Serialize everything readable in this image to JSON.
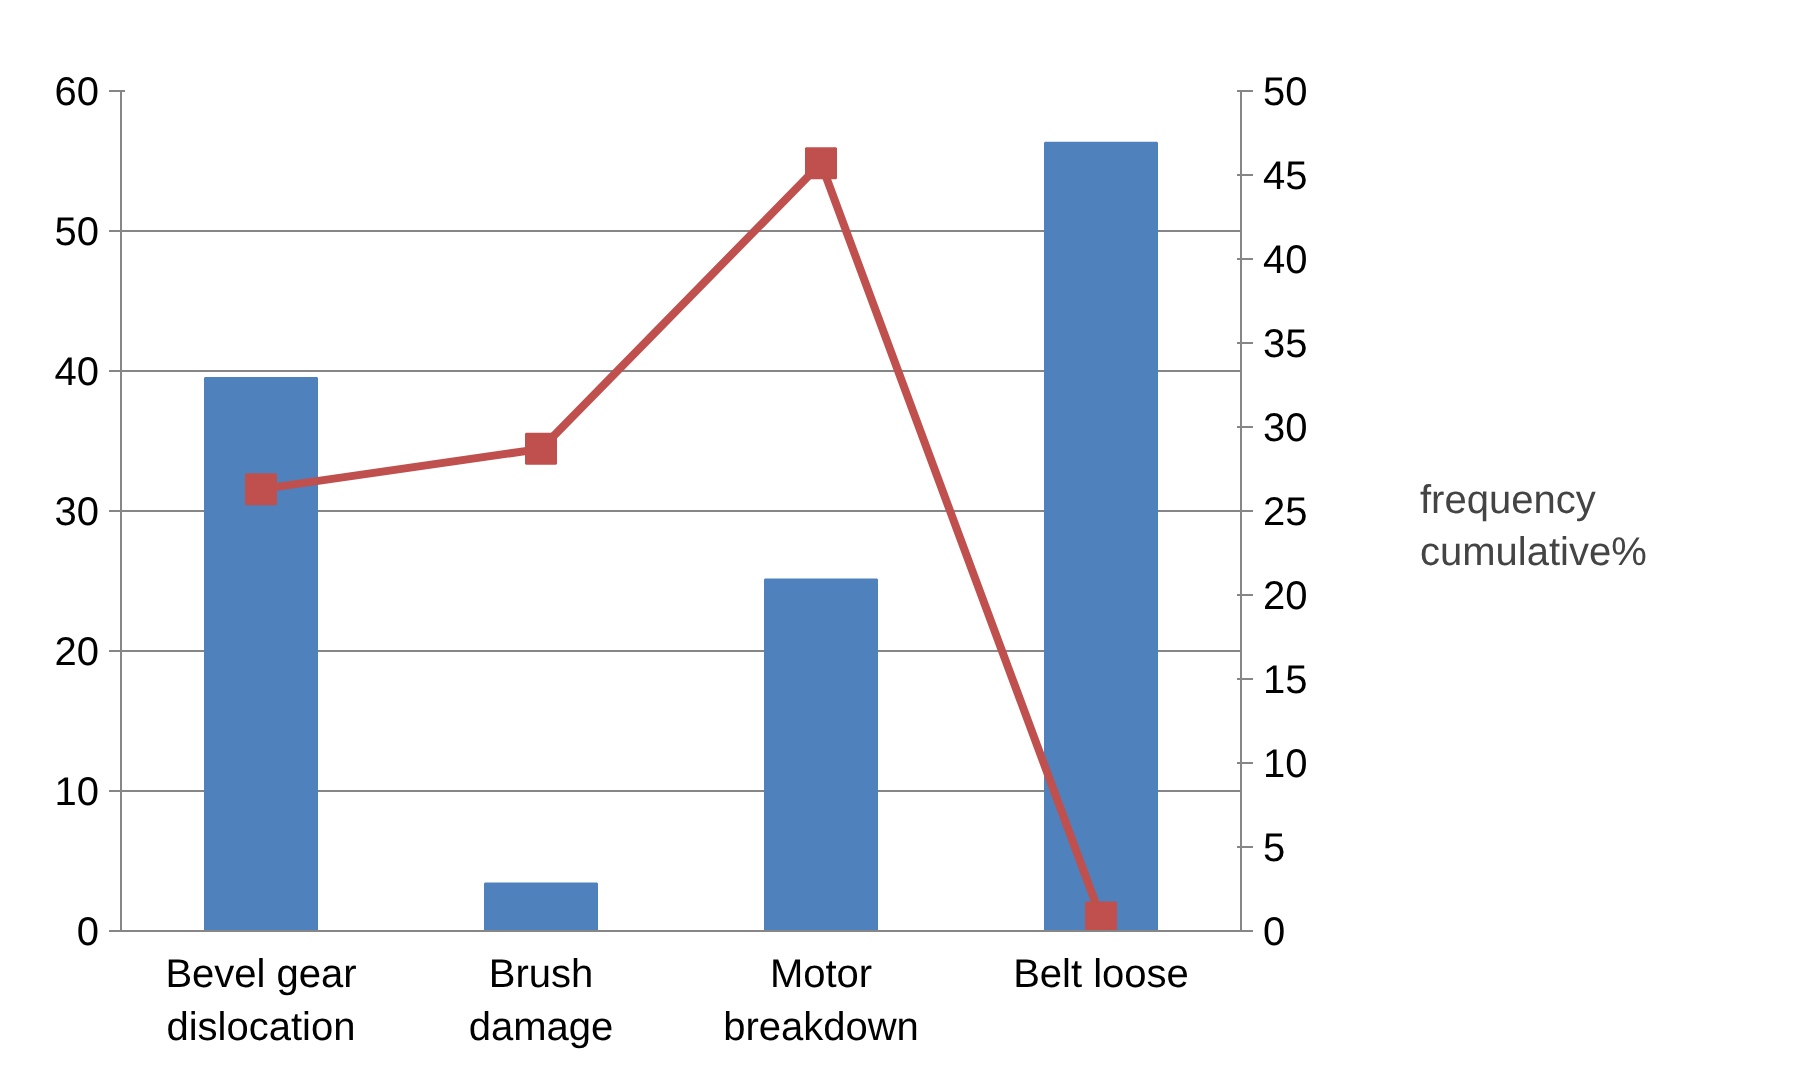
{
  "chart_data": {
    "type": "bar",
    "categories": [
      "Bevel gear\ndislocation",
      "Brush\ndamage",
      "Motor\nbreakdown",
      "Belt loose"
    ],
    "series": [
      {
        "name": "frequency",
        "color": "#4f81bd",
        "values": [
          39.5,
          3.4,
          25.1,
          56.3
        ]
      },
      {
        "name": "cumulative%",
        "type": "line",
        "axis": "y2",
        "color": "#c0504d",
        "marker": "square",
        "values": [
          26.3,
          28.7,
          45.7,
          0.8
        ]
      }
    ],
    "ylim": [
      0,
      60
    ],
    "yticks": [
      0,
      10,
      20,
      30,
      40,
      50,
      60
    ],
    "y2lim": [
      0,
      50
    ],
    "y2ticks": [
      0,
      5,
      10,
      15,
      20,
      25,
      30,
      35,
      40,
      45,
      50
    ],
    "grid": "y",
    "legend": "right"
  }
}
